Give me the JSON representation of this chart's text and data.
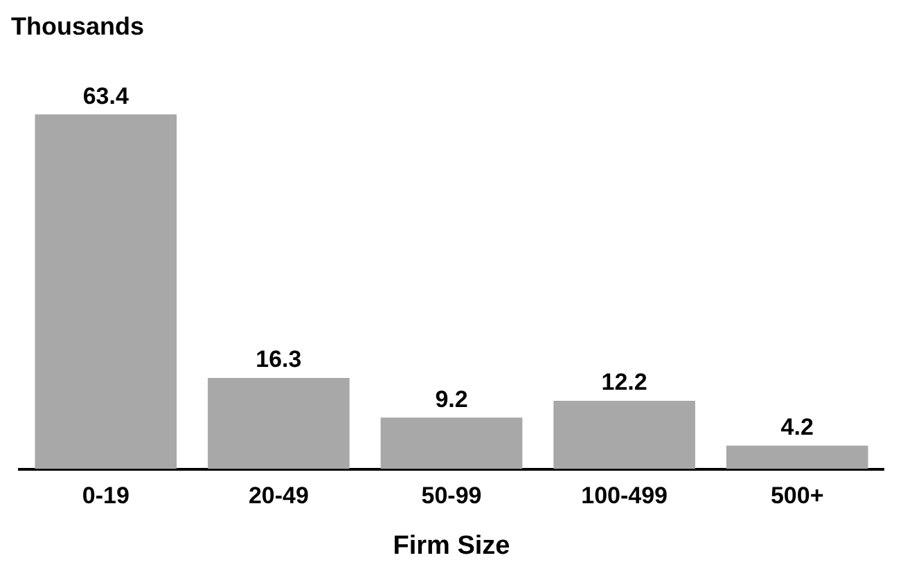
{
  "chart_data": {
    "type": "bar",
    "ylabel": "Thousands",
    "xlabel": "Firm Size",
    "categories": [
      "0-19",
      "20-49",
      "50-99",
      "100-499",
      "500+"
    ],
    "values": [
      63.4,
      16.3,
      9.2,
      12.2,
      4.2
    ],
    "color": "#a8a8a8",
    "data_labels": true
  }
}
